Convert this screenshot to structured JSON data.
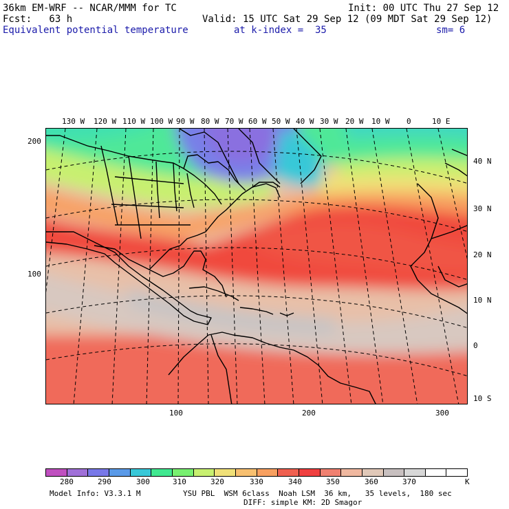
{
  "header": {
    "model_title": "36km EM-WRF -- NCAR/MMM for TC",
    "init": "Init: 00 UTC Thu 27 Sep 12",
    "fcst": "Fcst:   63 h",
    "valid": "Valid: 15 UTC Sat 29 Sep 12 (09 MDT Sat 29 Sep 12)",
    "field": "Equivalent potential temperature",
    "level": "at k-index =  35",
    "smooth": "sm= 6"
  },
  "map": {
    "top_lon_labels": [
      "130 W",
      "120 W",
      "110 W",
      "100 W",
      "90 W",
      "80 W",
      "70 W",
      "60 W",
      "50 W",
      "40 W",
      "30 W",
      "20 W",
      "10 W",
      "0",
      "10 E"
    ],
    "right_lat_labels": [
      "40 N",
      "30 N",
      "20 N",
      "10 N",
      "0",
      "10 S"
    ],
    "left_grid_labels": [
      "200",
      "100"
    ],
    "bottom_grid_labels": [
      "100",
      "200",
      "300"
    ]
  },
  "colorbar": {
    "colors": [
      "#c050c0",
      "#a070d8",
      "#7878e8",
      "#5a9ae8",
      "#38c8d8",
      "#40e890",
      "#78f070",
      "#c8f070",
      "#f0e078",
      "#f8c070",
      "#f8a060",
      "#f06050",
      "#f04040",
      "#f08070",
      "#f0b8a0",
      "#e0c8b8",
      "#c8c0c0",
      "#d8d8d8",
      "#ffffff",
      "#ffffff"
    ],
    "labels": [
      "280",
      "290",
      "300",
      "310",
      "320",
      "330",
      "340",
      "350",
      "360",
      "370"
    ],
    "unit": "K"
  },
  "footer": {
    "model_info": "Model Info: V3.3.1 M",
    "physics": "YSU PBL  WSM 6class  Noah LSM  36 km,   35 levels,  180 sec",
    "diffusion": "DIFF: simple KM: 2D Smagor"
  }
}
